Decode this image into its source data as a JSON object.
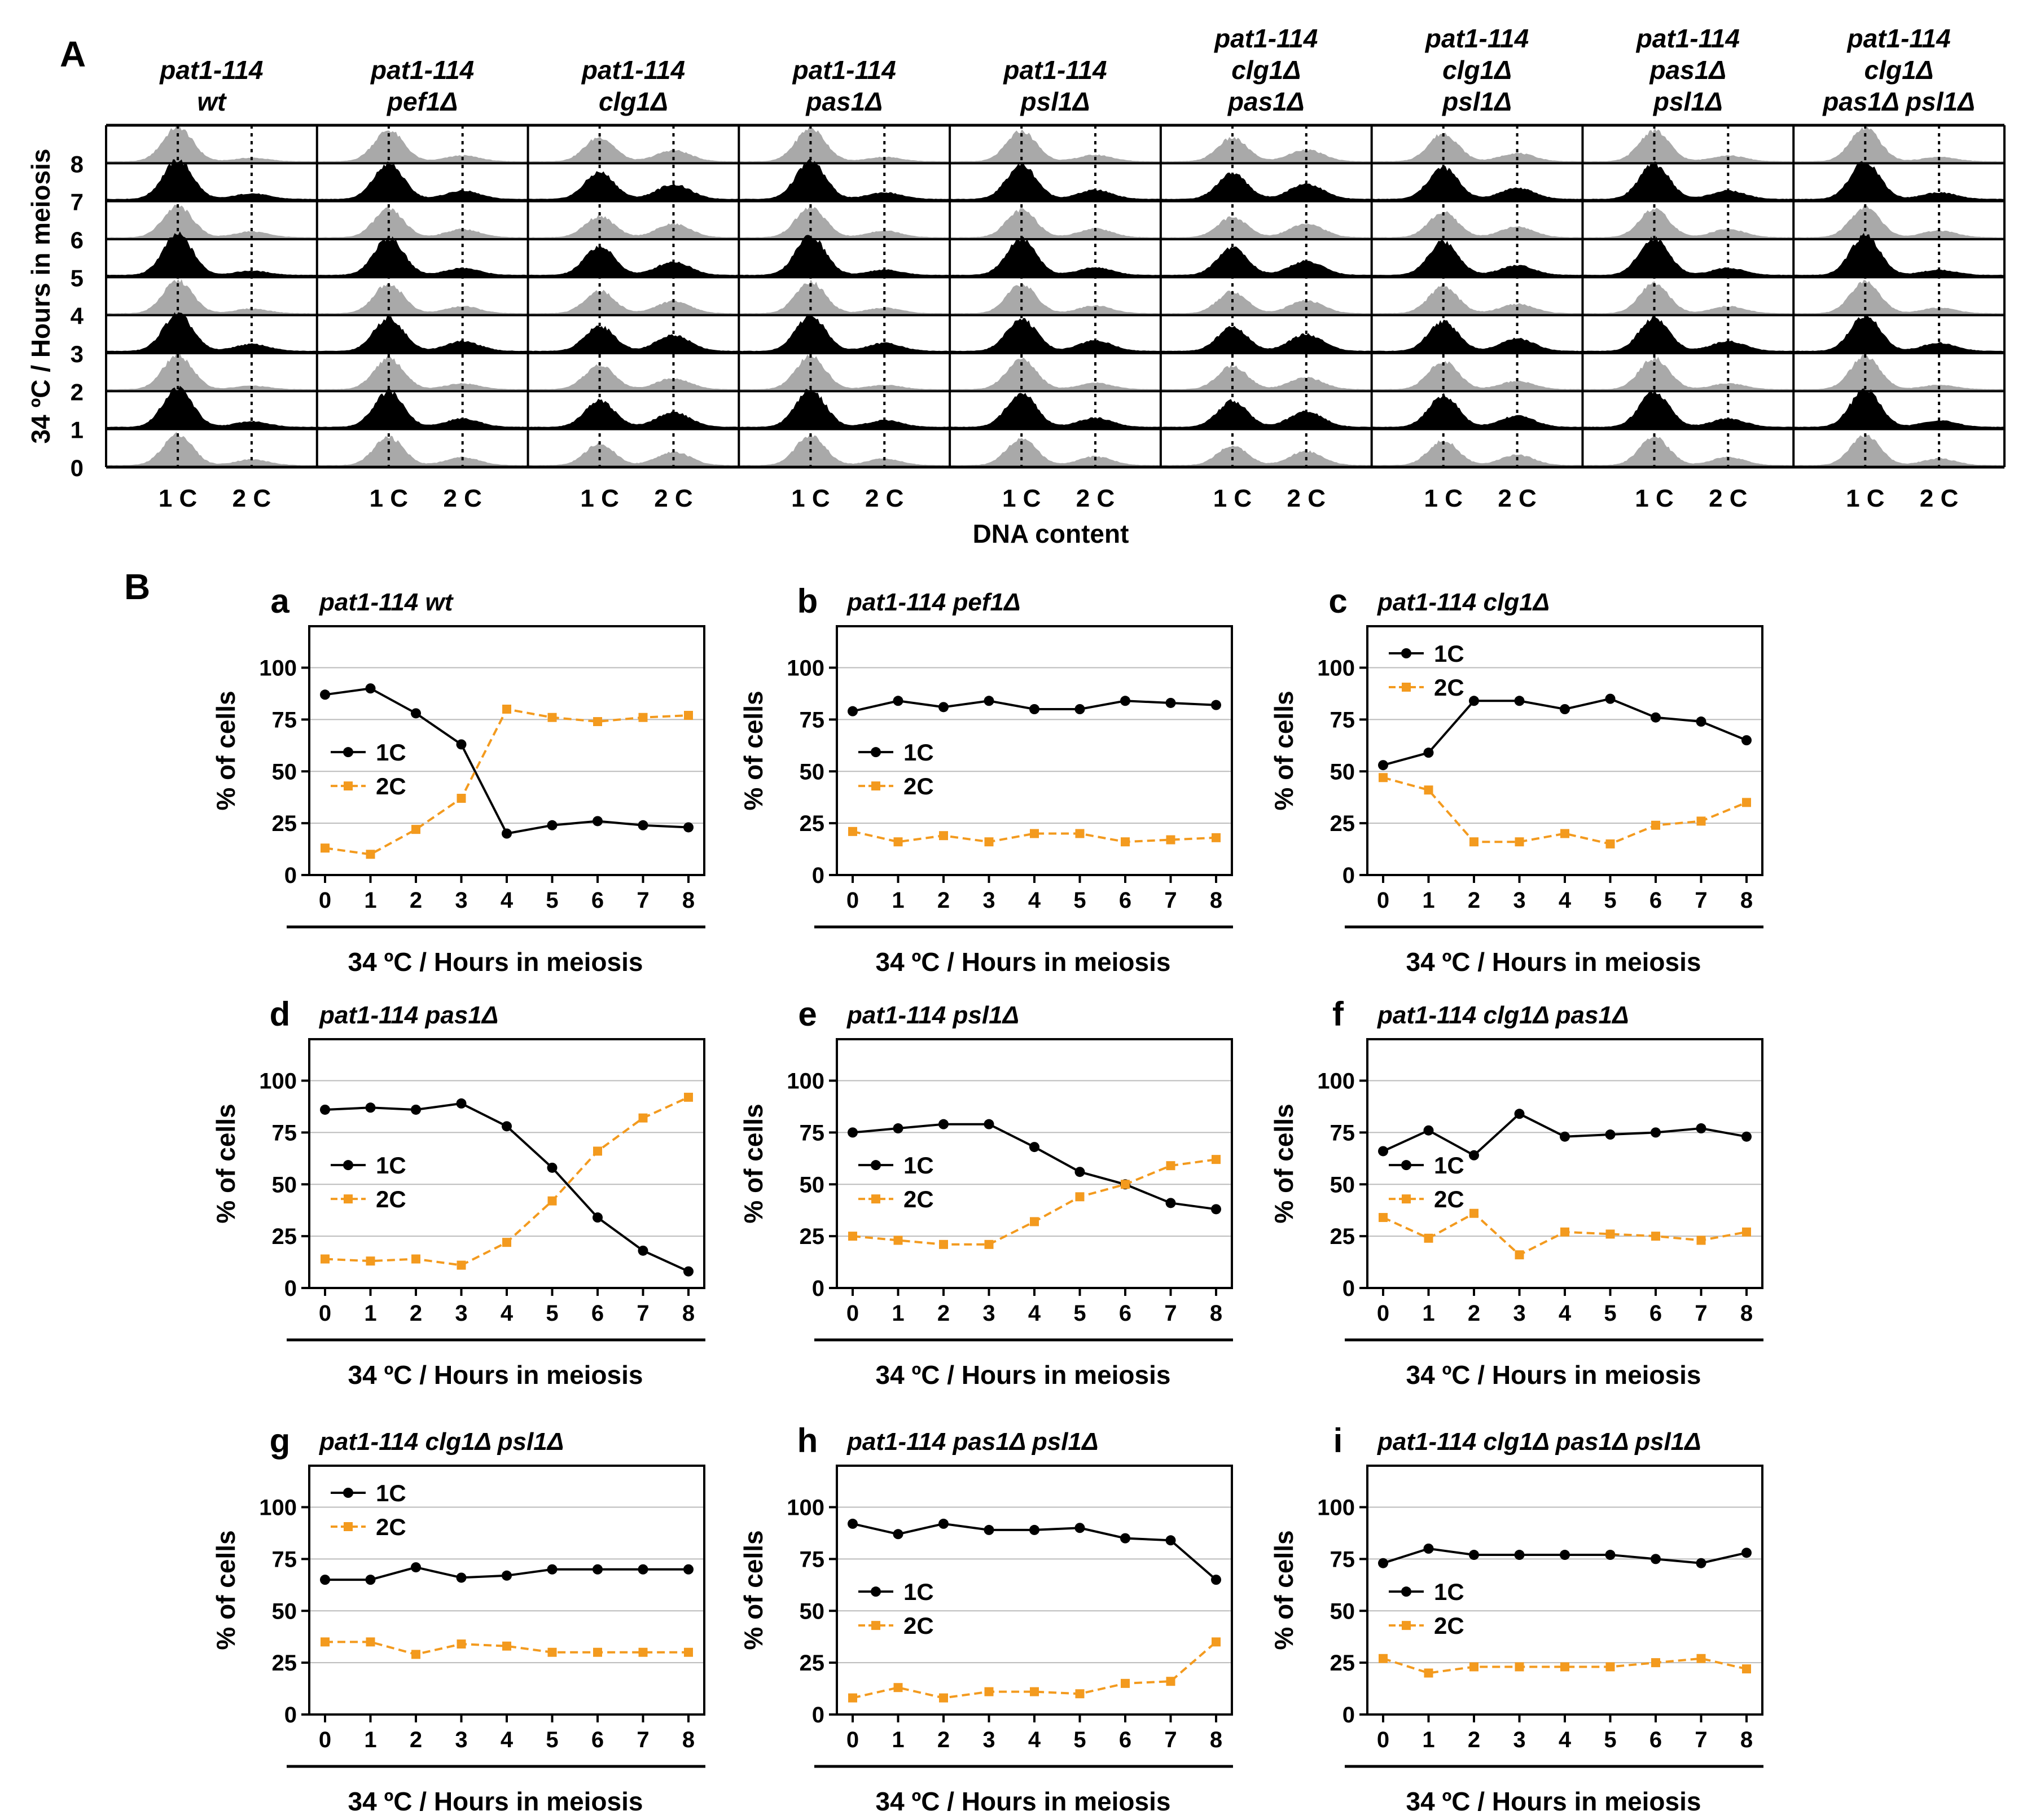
{
  "panel_a": {
    "label": "A",
    "y_axis_label": "34 ºC / Hours in meiosis",
    "x_axis_label": "DNA content",
    "tick_1c": "1 C",
    "tick_2c": "2 C",
    "row_labels": [
      "8",
      "7",
      "6",
      "5",
      "4",
      "3",
      "2",
      "1",
      "0"
    ],
    "strains": [
      {
        "lines": [
          "pat1-114",
          "wt"
        ]
      },
      {
        "lines": [
          "pat1-114",
          "pef1Δ"
        ]
      },
      {
        "lines": [
          "pat1-114",
          "clg1Δ"
        ]
      },
      {
        "lines": [
          "pat1-114",
          "pas1Δ"
        ]
      },
      {
        "lines": [
          "pat1-114",
          "psl1Δ"
        ]
      },
      {
        "lines": [
          "pat1-114",
          "clg1Δ",
          "pas1Δ"
        ]
      },
      {
        "lines": [
          "pat1-114",
          "clg1Δ",
          "psl1Δ"
        ]
      },
      {
        "lines": [
          "pat1-114",
          "pas1Δ",
          "psl1Δ"
        ]
      },
      {
        "lines": [
          "pat1-114",
          "clg1Δ",
          "pas1Δ  psl1Δ"
        ]
      }
    ]
  },
  "panel_b": {
    "label": "B",
    "colors": {
      "c1": "#000000",
      "c2": "#f39a1e",
      "grid": "#bbbbbb"
    }
  },
  "chart_data": [
    {
      "type": "line",
      "panel": "a",
      "title": "pat1-114 wt",
      "xlabel": "34 ºC / Hours in meiosis",
      "ylabel": "% of cells",
      "ylim": [
        0,
        120
      ],
      "yticks": [
        0,
        25,
        50,
        75,
        100
      ],
      "x": [
        0,
        1,
        2,
        3,
        4,
        5,
        6,
        7,
        8
      ],
      "legend": "left-middle",
      "series": [
        {
          "name": "1C",
          "values": [
            87,
            90,
            78,
            63,
            20,
            24,
            26,
            24,
            23
          ]
        },
        {
          "name": "2C",
          "values": [
            13,
            10,
            22,
            37,
            80,
            76,
            74,
            76,
            77
          ]
        }
      ]
    },
    {
      "type": "line",
      "panel": "b",
      "title": "pat1-114 pef1Δ",
      "xlabel": "34 ºC / Hours in meiosis",
      "ylabel": "% of cells",
      "ylim": [
        0,
        120
      ],
      "yticks": [
        0,
        25,
        50,
        75,
        100
      ],
      "x": [
        0,
        1,
        2,
        3,
        4,
        5,
        6,
        7,
        8
      ],
      "legend": "left-middle",
      "series": [
        {
          "name": "1C",
          "values": [
            79,
            84,
            81,
            84,
            80,
            80,
            84,
            83,
            82
          ]
        },
        {
          "name": "2C",
          "values": [
            21,
            16,
            19,
            16,
            20,
            20,
            16,
            17,
            18
          ]
        }
      ]
    },
    {
      "type": "line",
      "panel": "c",
      "title": "pat1-114 clg1Δ",
      "xlabel": "34 ºC / Hours in meiosis",
      "ylabel": "% of cells",
      "ylim": [
        0,
        120
      ],
      "yticks": [
        0,
        25,
        50,
        75,
        100
      ],
      "x": [
        0,
        1,
        2,
        3,
        4,
        5,
        6,
        7,
        8
      ],
      "legend": "top-left",
      "series": [
        {
          "name": "1C",
          "values": [
            53,
            59,
            84,
            84,
            80,
            85,
            76,
            74,
            65
          ]
        },
        {
          "name": "2C",
          "values": [
            47,
            41,
            16,
            16,
            20,
            15,
            24,
            26,
            35
          ]
        }
      ]
    },
    {
      "type": "line",
      "panel": "d",
      "title": "pat1-114 pas1Δ",
      "xlabel": "34 ºC / Hours in meiosis",
      "ylabel": "% of cells",
      "ylim": [
        0,
        120
      ],
      "yticks": [
        0,
        25,
        50,
        75,
        100
      ],
      "x": [
        0,
        1,
        2,
        3,
        4,
        5,
        6,
        7,
        8
      ],
      "legend": "left-middle",
      "series": [
        {
          "name": "1C",
          "values": [
            86,
            87,
            86,
            89,
            78,
            58,
            34,
            18,
            8
          ]
        },
        {
          "name": "2C",
          "values": [
            14,
            13,
            14,
            11,
            22,
            42,
            66,
            82,
            92
          ]
        }
      ]
    },
    {
      "type": "line",
      "panel": "e",
      "title": "pat1-114 psl1Δ",
      "xlabel": "34 ºC / Hours in meiosis",
      "ylabel": "% of cells",
      "ylim": [
        0,
        120
      ],
      "yticks": [
        0,
        25,
        50,
        75,
        100
      ],
      "x": [
        0,
        1,
        2,
        3,
        4,
        5,
        6,
        7,
        8
      ],
      "legend": "left-middle",
      "series": [
        {
          "name": "1C",
          "values": [
            75,
            77,
            79,
            79,
            68,
            56,
            50,
            41,
            38
          ]
        },
        {
          "name": "2C",
          "values": [
            25,
            23,
            21,
            21,
            32,
            44,
            50,
            59,
            62
          ]
        }
      ]
    },
    {
      "type": "line",
      "panel": "f",
      "title": "pat1-114 clg1Δ pas1Δ",
      "xlabel": "34 ºC / Hours in meiosis",
      "ylabel": "% of cells",
      "ylim": [
        0,
        120
      ],
      "yticks": [
        0,
        25,
        50,
        75,
        100
      ],
      "x": [
        0,
        1,
        2,
        3,
        4,
        5,
        6,
        7,
        8
      ],
      "legend": "left-middle",
      "series": [
        {
          "name": "1C",
          "values": [
            66,
            76,
            64,
            84,
            73,
            74,
            75,
            77,
            73
          ]
        },
        {
          "name": "2C",
          "values": [
            34,
            24,
            36,
            16,
            27,
            26,
            25,
            23,
            27
          ]
        }
      ]
    },
    {
      "type": "line",
      "panel": "g",
      "title": "pat1-114 clg1Δ psl1Δ",
      "xlabel": "34 ºC / Hours in meiosis",
      "ylabel": "% of cells",
      "ylim": [
        0,
        120
      ],
      "yticks": [
        0,
        25,
        50,
        75,
        100
      ],
      "x": [
        0,
        1,
        2,
        3,
        4,
        5,
        6,
        7,
        8
      ],
      "legend": "top-left",
      "series": [
        {
          "name": "1C",
          "values": [
            65,
            65,
            71,
            66,
            67,
            70,
            70,
            70,
            70
          ]
        },
        {
          "name": "2C",
          "values": [
            35,
            35,
            29,
            34,
            33,
            30,
            30,
            30,
            30
          ]
        }
      ]
    },
    {
      "type": "line",
      "panel": "h",
      "title": "pat1-114 pas1Δ psl1Δ",
      "xlabel": "34 ºC / Hours in meiosis",
      "ylabel": "% of cells",
      "ylim": [
        0,
        120
      ],
      "yticks": [
        0,
        25,
        50,
        75,
        100
      ],
      "x": [
        0,
        1,
        2,
        3,
        4,
        5,
        6,
        7,
        8
      ],
      "legend": "left-middle",
      "series": [
        {
          "name": "1C",
          "values": [
            92,
            87,
            92,
            89,
            89,
            90,
            85,
            84,
            65
          ]
        },
        {
          "name": "2C",
          "values": [
            8,
            13,
            8,
            11,
            11,
            10,
            15,
            16,
            35
          ]
        }
      ]
    },
    {
      "type": "line",
      "panel": "i",
      "title": "pat1-114 clg1Δ pas1Δ psl1Δ",
      "xlabel": "34 ºC / Hours in meiosis",
      "ylabel": "% of cells",
      "ylim": [
        0,
        120
      ],
      "yticks": [
        0,
        25,
        50,
        75,
        100
      ],
      "x": [
        0,
        1,
        2,
        3,
        4,
        5,
        6,
        7,
        8
      ],
      "legend": "left-middle",
      "series": [
        {
          "name": "1C",
          "values": [
            73,
            80,
            77,
            77,
            77,
            77,
            75,
            73,
            78
          ]
        },
        {
          "name": "2C",
          "values": [
            27,
            20,
            23,
            23,
            23,
            23,
            25,
            27,
            22
          ]
        }
      ]
    }
  ]
}
